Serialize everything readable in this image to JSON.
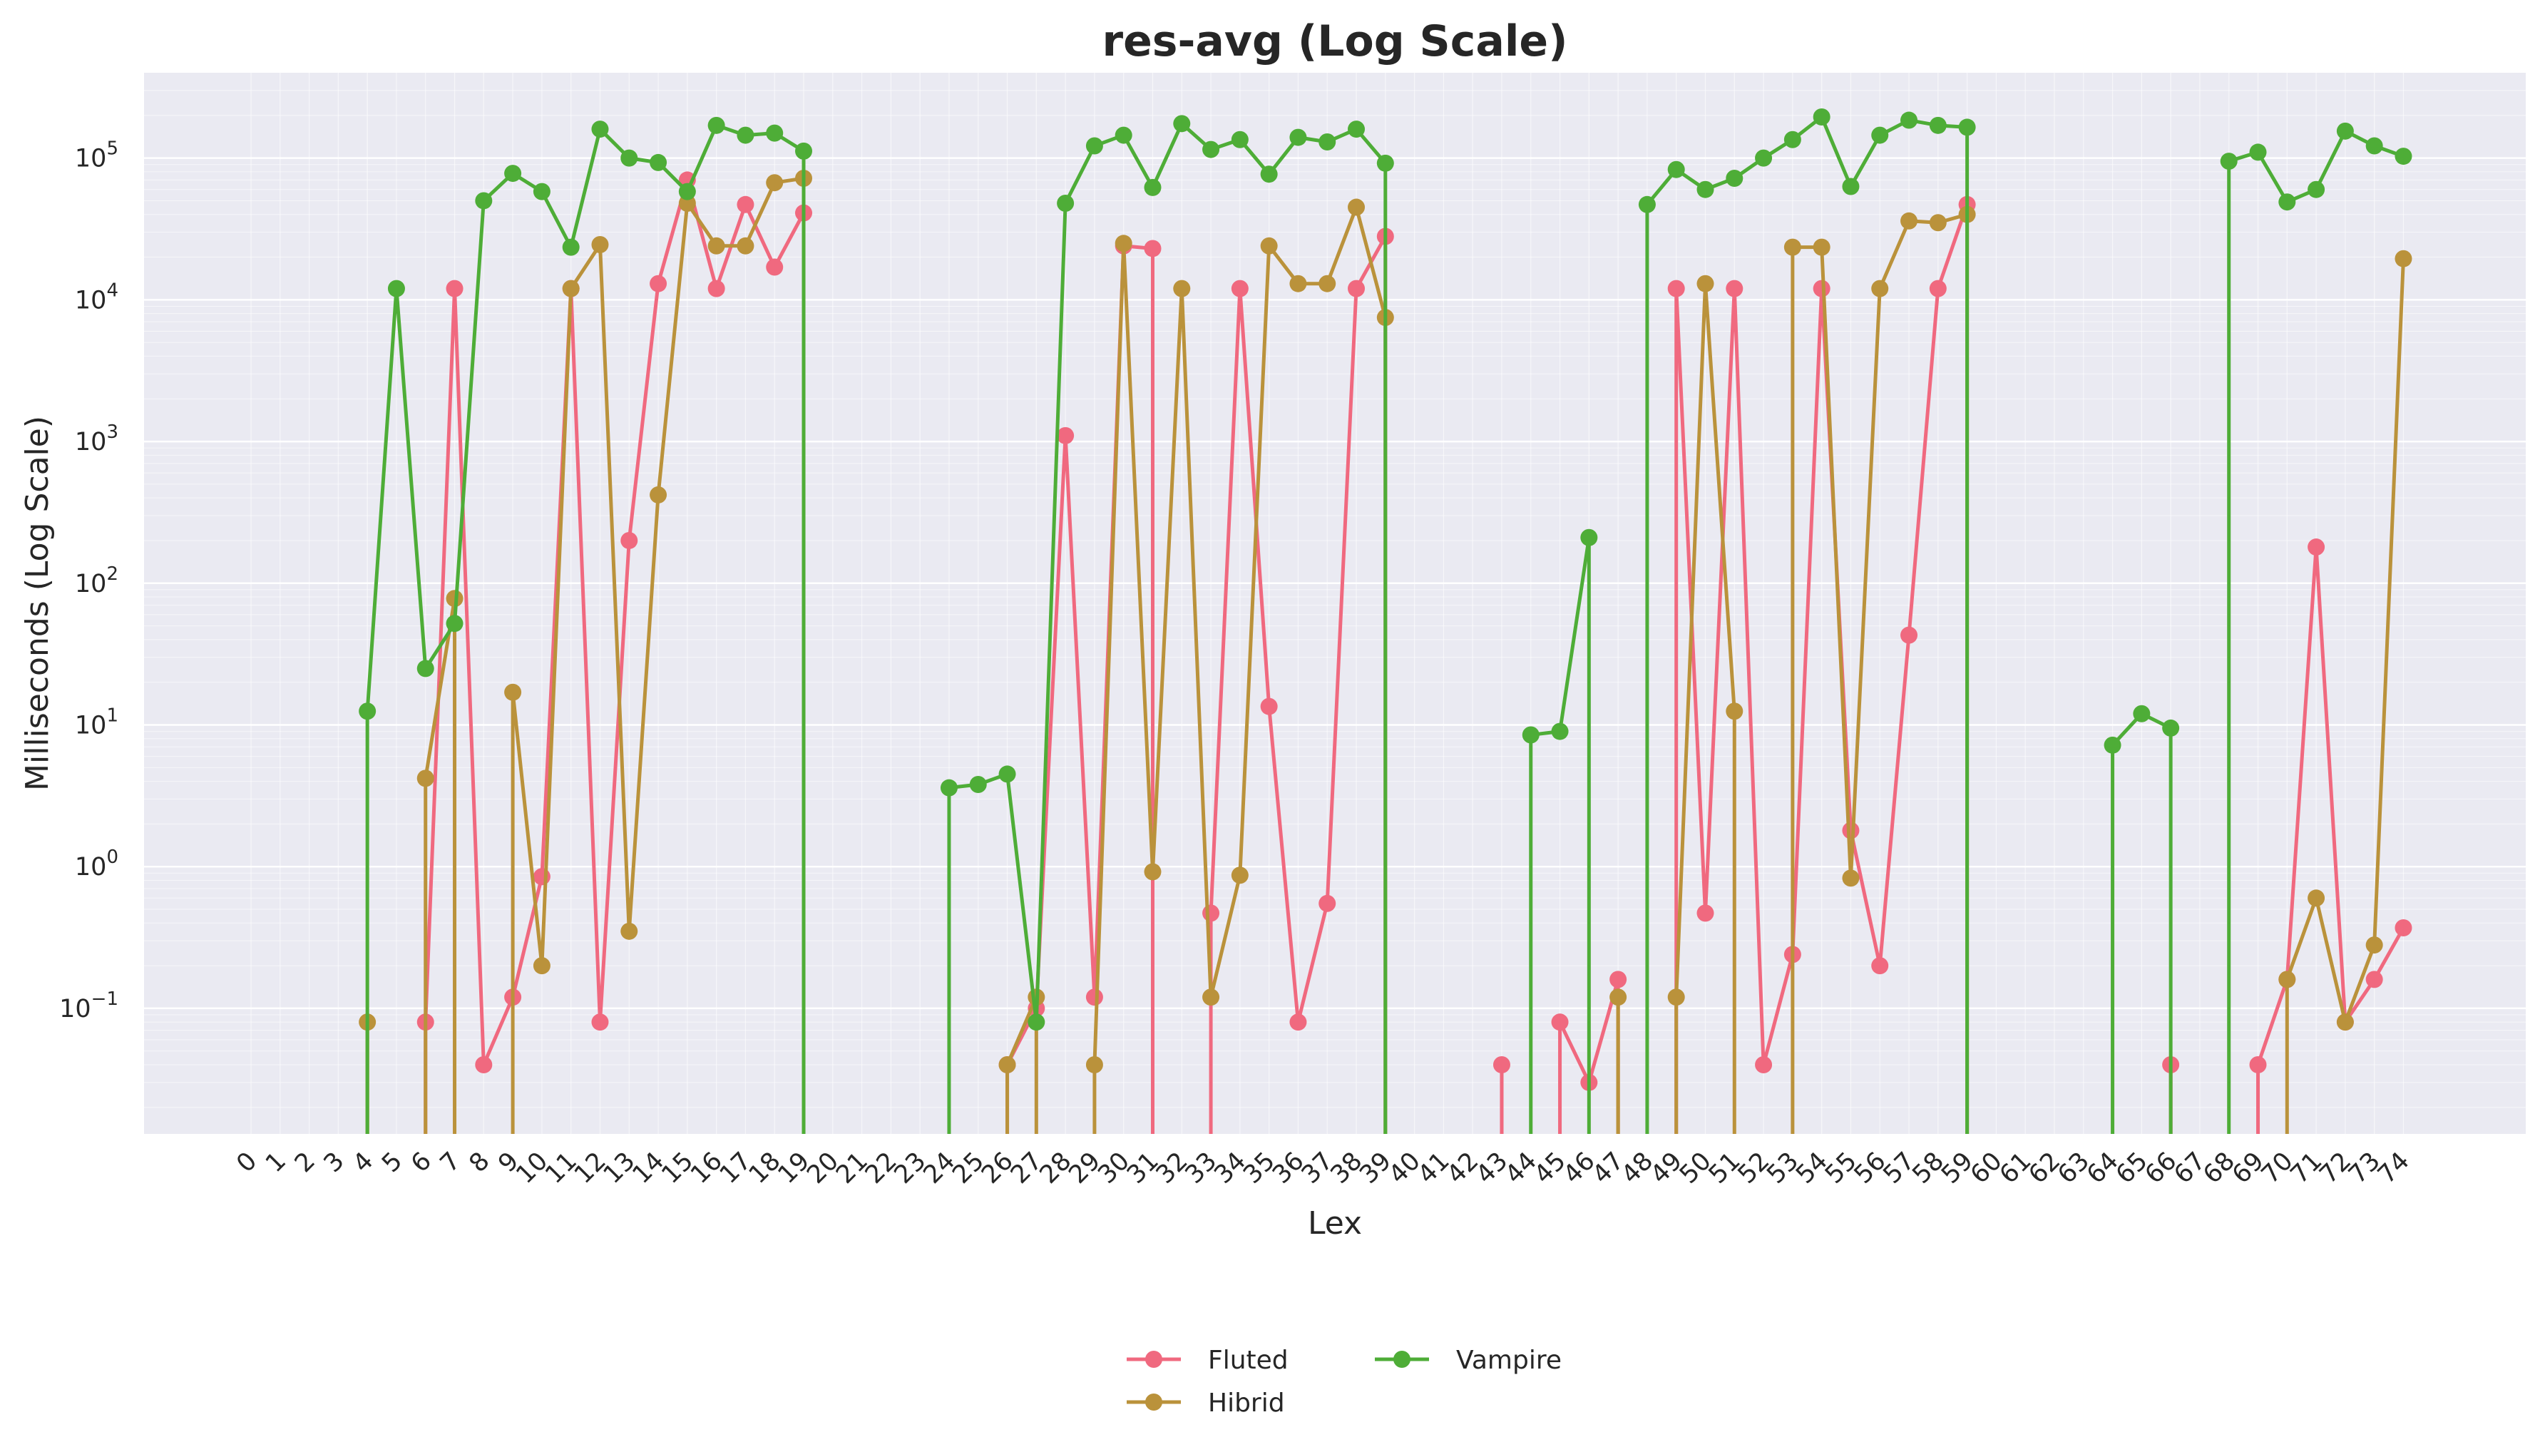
{
  "chart_data": {
    "type": "line",
    "title": "res-avg (Log Scale)",
    "xlabel": "Lex",
    "ylabel": "Milliseconds (Log Scale)",
    "yscale": "log",
    "ylim": [
      0.013,
      400000
    ],
    "y_ticks": [
      {
        "value": 0.1,
        "base": "10",
        "exp": "−1"
      },
      {
        "value": 1,
        "base": "10",
        "exp": "0"
      },
      {
        "value": 10,
        "base": "10",
        "exp": "1"
      },
      {
        "value": 100,
        "base": "10",
        "exp": "2"
      },
      {
        "value": 1000,
        "base": "10",
        "exp": "3"
      },
      {
        "value": 10000,
        "base": "10",
        "exp": "4"
      },
      {
        "value": 100000,
        "base": "10",
        "exp": "5"
      }
    ],
    "categories": [
      "0",
      "1",
      "2",
      "3",
      "4",
      "5",
      "6",
      "7",
      "8",
      "9",
      "10",
      "11",
      "12",
      "13",
      "14",
      "15",
      "16",
      "17",
      "18",
      "19",
      "20",
      "21",
      "22",
      "23",
      "24",
      "25",
      "26",
      "27",
      "28",
      "29",
      "30",
      "31",
      "32",
      "33",
      "34",
      "35",
      "36",
      "37",
      "38",
      "39",
      "40",
      "41",
      "42",
      "43",
      "44",
      "45",
      "46",
      "47",
      "48",
      "49",
      "50",
      "51",
      "52",
      "53",
      "54",
      "55",
      "56",
      "57",
      "58",
      "59",
      "60",
      "61",
      "62",
      "63",
      "64",
      "65",
      "66",
      "67",
      "68",
      "69",
      "70",
      "71",
      "72",
      "73",
      "74"
    ],
    "grid": true,
    "background": "#eaeaf2",
    "legend_position": "bottom-center",
    "series": [
      {
        "name": "Fluted",
        "color": "#f0697f",
        "values": [
          null,
          null,
          null,
          null,
          null,
          null,
          0.08,
          12000,
          0.04,
          0.12,
          0.85,
          12000,
          0.08,
          200,
          13000,
          70000,
          12000,
          47000,
          17000,
          41000,
          null,
          null,
          null,
          null,
          null,
          null,
          0.04,
          0.1,
          1100,
          0.12,
          24000,
          23000,
          null,
          0.47,
          12000,
          13.5,
          0.08,
          0.55,
          12000,
          28000,
          null,
          null,
          null,
          0.04,
          null,
          0.08,
          0.03,
          0.16,
          null,
          12000,
          0.47,
          12000,
          0.04,
          0.24,
          12000,
          1.8,
          0.2,
          43,
          12000,
          47000,
          null,
          null,
          null,
          null,
          null,
          null,
          0.04,
          null,
          null,
          0.04,
          0.16,
          180,
          0.08,
          0.16,
          0.37
        ]
      },
      {
        "name": "Hibrid",
        "color": "#ba923b",
        "values": [
          null,
          null,
          null,
          null,
          0.08,
          null,
          4.2,
          78,
          null,
          17,
          0.2,
          12000,
          24500,
          0.35,
          420,
          48000,
          24000,
          24000,
          67000,
          72000,
          null,
          null,
          null,
          null,
          null,
          null,
          0.04,
          0.12,
          null,
          0.04,
          25000,
          0.92,
          12000,
          0.12,
          0.87,
          24000,
          13000,
          13000,
          45000,
          7500,
          null,
          null,
          null,
          null,
          null,
          null,
          null,
          0.12,
          null,
          0.12,
          13000,
          12.5,
          null,
          23500,
          23500,
          0.83,
          12000,
          36000,
          35000,
          40000,
          null,
          null,
          null,
          null,
          null,
          null,
          null,
          null,
          null,
          null,
          0.16,
          0.6,
          0.08,
          0.28,
          19500
        ]
      },
      {
        "name": "Vampire",
        "color": "#4ead37",
        "values": [
          null,
          null,
          null,
          null,
          12.5,
          12000,
          25,
          52,
          50000,
          78000,
          58000,
          23500,
          160000,
          100000,
          93000,
          58000,
          170000,
          145000,
          150000,
          112000,
          null,
          null,
          null,
          null,
          3.6,
          3.8,
          4.5,
          0.08,
          48000,
          122000,
          145000,
          62000,
          175000,
          115000,
          135000,
          77000,
          140000,
          130000,
          160000,
          92000,
          null,
          null,
          null,
          null,
          8.5,
          9,
          210,
          null,
          47000,
          83000,
          60000,
          72000,
          100000,
          135000,
          195000,
          63000,
          145000,
          185000,
          170000,
          165000,
          null,
          null,
          null,
          null,
          7.2,
          12,
          9.5,
          null,
          95000,
          110000,
          49000,
          60000,
          155000,
          122000,
          103000
        ]
      }
    ]
  }
}
